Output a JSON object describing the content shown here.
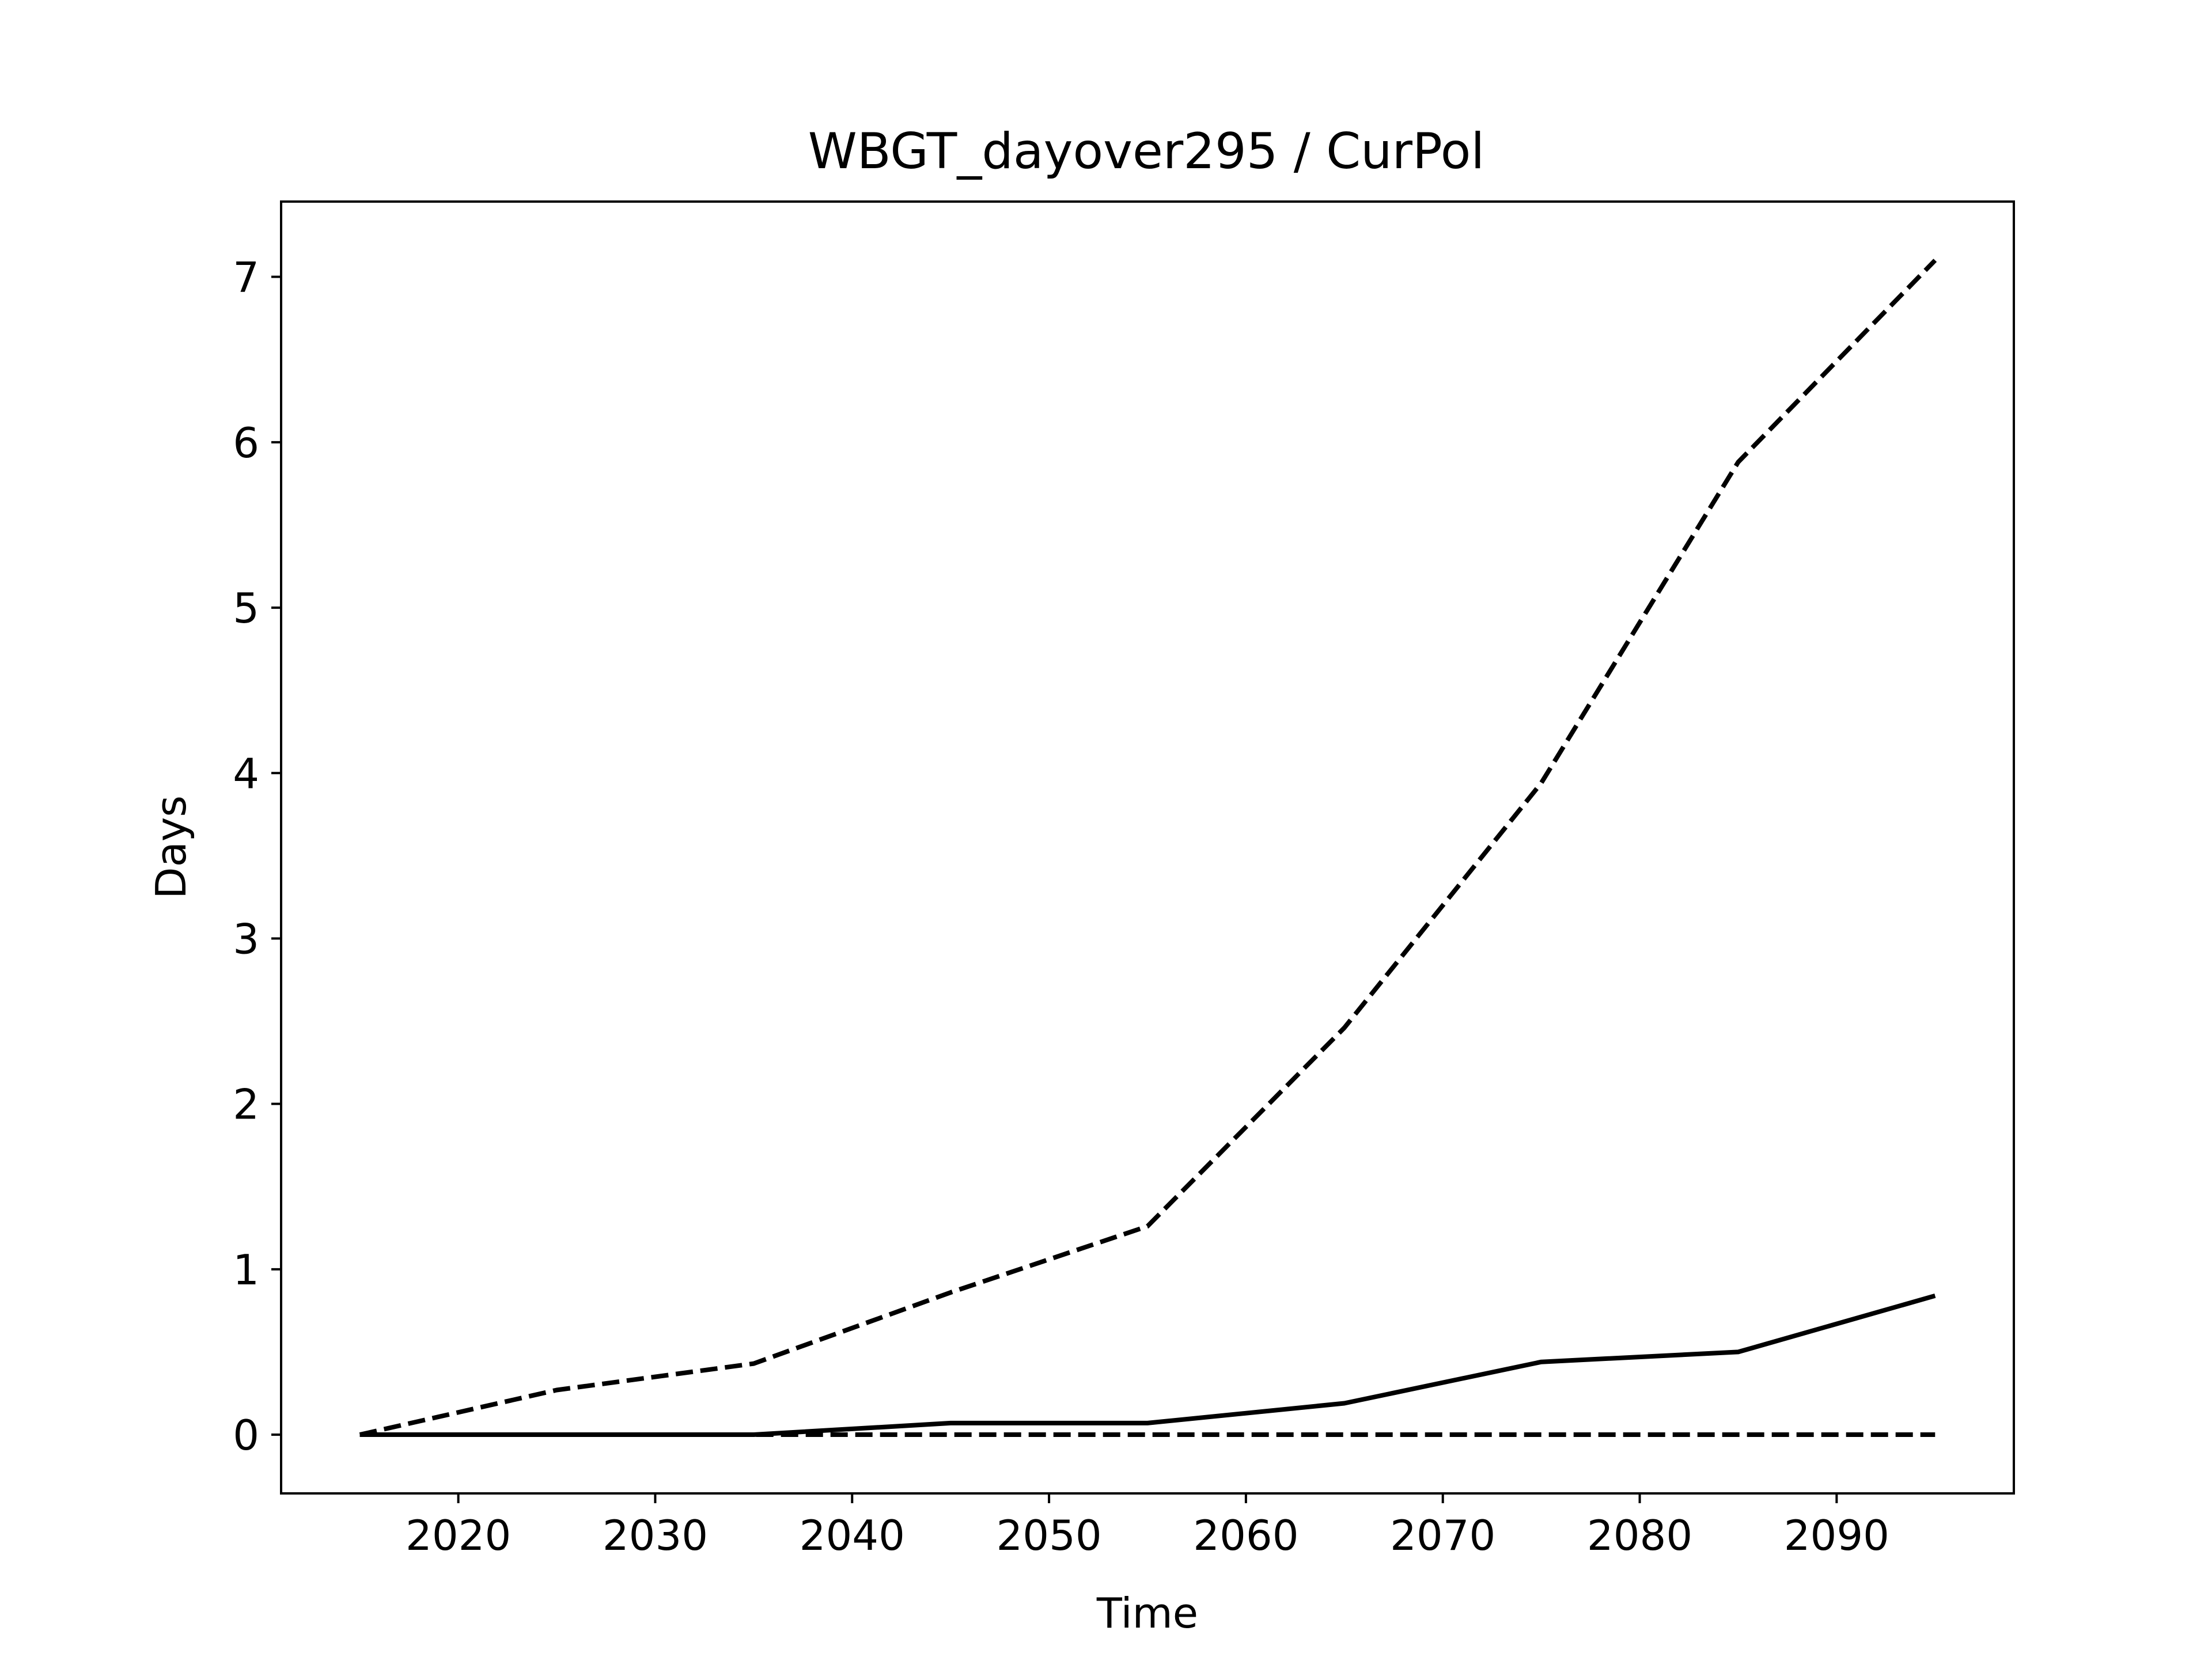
{
  "chart_data": {
    "type": "line",
    "title": "WBGT_dayover295 / CurPol",
    "xlabel": "Time",
    "ylabel": "Days",
    "xlim": [
      2011,
      2099
    ],
    "ylim": [
      -0.355,
      7.455
    ],
    "xticks": [
      2020,
      2030,
      2040,
      2050,
      2060,
      2070,
      2080,
      2090
    ],
    "yticks": [
      0,
      1,
      2,
      3,
      4,
      5,
      6,
      7
    ],
    "grid": false,
    "legend": "none",
    "x": [
      2015,
      2025,
      2035,
      2045,
      2055,
      2065,
      2075,
      2085,
      2095
    ],
    "series": [
      {
        "style": "dashed",
        "color": "#000000",
        "values": [
          0.0,
          0.27,
          0.43,
          0.86,
          1.26,
          2.46,
          3.94,
          5.88,
          7.1
        ]
      },
      {
        "style": "solid",
        "color": "#000000",
        "values": [
          0.0,
          0.0,
          0.0,
          0.07,
          0.07,
          0.19,
          0.44,
          0.5,
          0.84
        ]
      },
      {
        "style": "dashed",
        "color": "#000000",
        "values": [
          0.0,
          0.0,
          0.0,
          0.0,
          0.0,
          0.0,
          0.0,
          0.0,
          0.0
        ]
      }
    ]
  }
}
